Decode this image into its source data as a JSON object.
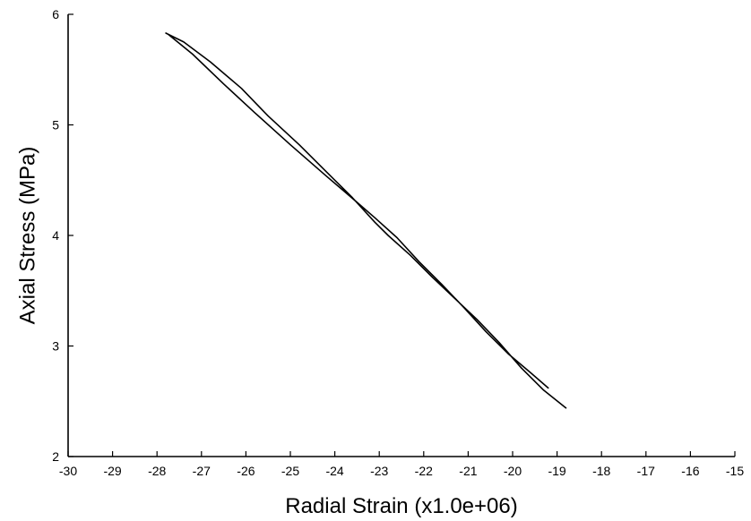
{
  "chart_data": {
    "type": "line",
    "title": "",
    "xlabel": "Radial Strain (x1.0e+06)",
    "ylabel": "Axial Stress (MPa)",
    "xlim": [
      -30,
      -15
    ],
    "ylim": [
      2,
      6
    ],
    "xticks": [
      "-30",
      "-29",
      "-28",
      "-27",
      "-26",
      "-25",
      "-24",
      "-23",
      "-22",
      "-21",
      "-20",
      "-19",
      "-18",
      "-17",
      "-16",
      "-15"
    ],
    "yticks": [
      "2",
      "3",
      "4",
      "5",
      "6"
    ],
    "grid": false,
    "series": [
      {
        "color": "#000000",
        "x": [
          -18.8,
          -19.3,
          -19.8,
          -20.3,
          -20.8,
          -21.3,
          -21.8,
          -22.3,
          -22.8,
          -23.1,
          -23.6,
          -24.2,
          -24.8,
          -25.5,
          -26.1,
          -26.8,
          -27.4,
          -27.7,
          -27.8,
          -27.75,
          -27.2,
          -26.5,
          -25.8,
          -25.0,
          -24.2,
          -23.5,
          -23.1,
          -22.6,
          -22.1,
          -21.6,
          -21.1,
          -20.6,
          -20.1,
          -19.6,
          -19.2
        ],
        "y": [
          2.44,
          2.6,
          2.8,
          3.03,
          3.24,
          3.43,
          3.62,
          3.82,
          4.0,
          4.12,
          4.34,
          4.58,
          4.82,
          5.08,
          5.33,
          5.57,
          5.75,
          5.81,
          5.83,
          5.82,
          5.64,
          5.37,
          5.11,
          4.82,
          4.54,
          4.3,
          4.16,
          3.98,
          3.76,
          3.56,
          3.35,
          3.13,
          2.93,
          2.76,
          2.62
        ]
      }
    ]
  }
}
